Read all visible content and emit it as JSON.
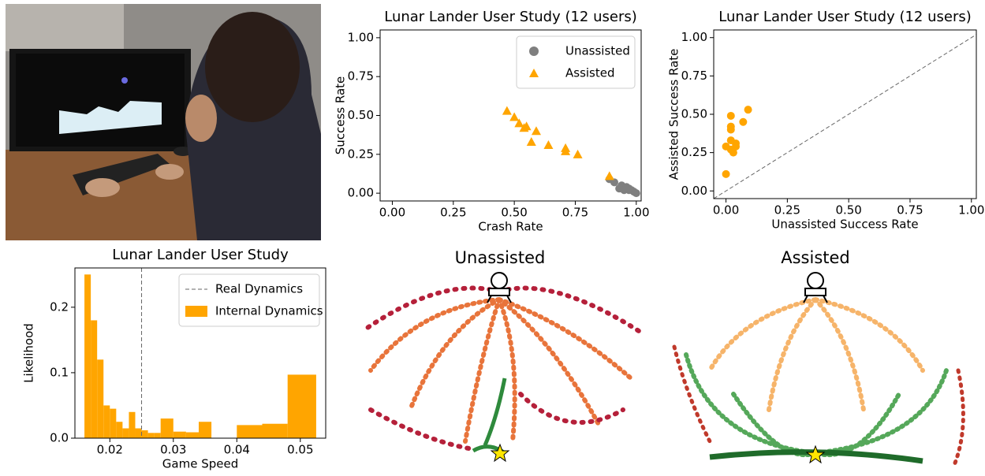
{
  "chart_data": [
    {
      "type": "scatter",
      "title": "Lunar Lander User Study (12 users)",
      "x_label": "Crash Rate",
      "y_label": "Success Rate",
      "xlim": [
        -0.05,
        1.02
      ],
      "ylim": [
        -0.05,
        1.05
      ],
      "xticks": [
        {
          "value": 0,
          "label": "0.00"
        },
        {
          "value": 0.25,
          "label": "0.25"
        },
        {
          "value": 0.5,
          "label": "0.50"
        },
        {
          "value": 0.75,
          "label": "0.75"
        },
        {
          "value": 1,
          "label": "1.00"
        }
      ],
      "yticks": [
        {
          "value": 0,
          "label": "0.00"
        },
        {
          "value": 0.25,
          "label": "0.25"
        },
        {
          "value": 0.5,
          "label": "0.50"
        },
        {
          "value": 0.75,
          "label": "0.75"
        },
        {
          "value": 1,
          "label": "1.00"
        }
      ],
      "legend": "upper right",
      "series": [
        {
          "name": "Unassisted",
          "color": "#7f7f7f",
          "marker": "circle",
          "x": [
            0.89,
            0.91,
            0.93,
            0.94,
            0.95,
            0.96,
            0.97,
            0.98,
            0.99,
            1.0,
            0.95,
            0.97
          ],
          "values": [
            0.09,
            0.07,
            0.03,
            0.05,
            0.03,
            0.04,
            0.02,
            0.02,
            0.01,
            0.0,
            0.02,
            0.03
          ]
        },
        {
          "name": "Assisted",
          "color": "#ffa500",
          "marker": "triangle",
          "x": [
            0.47,
            0.5,
            0.52,
            0.54,
            0.57,
            0.59,
            0.64,
            0.71,
            0.71,
            0.76,
            0.89,
            0.55
          ],
          "values": [
            0.53,
            0.49,
            0.45,
            0.42,
            0.33,
            0.4,
            0.31,
            0.29,
            0.27,
            0.25,
            0.11,
            0.43
          ]
        }
      ]
    },
    {
      "type": "scatter",
      "title": "Lunar Lander User Study (12 users)",
      "x_label": "Unassisted Success Rate",
      "y_label": "Assisted Success Rate",
      "xlim": [
        -0.05,
        1.02
      ],
      "ylim": [
        -0.05,
        1.05
      ],
      "diagonal": true,
      "xticks": [
        {
          "value": 0,
          "label": "0.00"
        },
        {
          "value": 0.25,
          "label": "0.25"
        },
        {
          "value": 0.5,
          "label": "0.50"
        },
        {
          "value": 0.75,
          "label": "0.75"
        },
        {
          "value": 1,
          "label": "1.00"
        }
      ],
      "yticks": [
        {
          "value": 0,
          "label": "0.00"
        },
        {
          "value": 0.25,
          "label": "0.25"
        },
        {
          "value": 0.5,
          "label": "0.50"
        },
        {
          "value": 0.75,
          "label": "0.75"
        },
        {
          "value": 1,
          "label": "1.00"
        }
      ],
      "series": [
        {
          "color": "#ffa500",
          "marker": "circle",
          "x": [
            0.0,
            0.0,
            0.02,
            0.02,
            0.02,
            0.02,
            0.02,
            0.03,
            0.04,
            0.04,
            0.07,
            0.09
          ],
          "values": [
            0.11,
            0.29,
            0.49,
            0.42,
            0.4,
            0.33,
            0.27,
            0.25,
            0.31,
            0.29,
            0.45,
            0.53
          ]
        }
      ]
    },
    {
      "type": "histogram",
      "title": "Lunar Lander User Study",
      "x_label": "Game Speed",
      "y_label": "Likelihood",
      "xlim": [
        0.0145,
        0.054
      ],
      "ylim": [
        0,
        0.26
      ],
      "xticks": [
        0.02,
        0.03,
        0.04,
        0.05
      ],
      "yticks": [
        {
          "value": 0,
          "label": "0.0"
        },
        0.1,
        0.2
      ],
      "legend": "upper right",
      "reference_line": {
        "name": "Real Dynamics",
        "value": 0.025,
        "color": "#666666"
      },
      "bins": [
        0.016,
        0.017,
        0.018,
        0.019,
        0.02,
        0.021,
        0.022,
        0.023,
        0.024,
        0.025,
        0.026,
        0.027,
        0.028,
        0.03,
        0.032,
        0.034,
        0.036,
        0.04,
        0.044,
        0.048,
        0.0525
      ],
      "series": [
        {
          "name": "Internal Dynamics",
          "color": "#ffa500",
          "values": [
            0.25,
            0.18,
            0.12,
            0.05,
            0.045,
            0.025,
            0.015,
            0.04,
            0.015,
            0.012,
            0.008,
            0.008,
            0.03,
            0.01,
            0.009,
            0.025,
            0,
            0.02,
            0.022,
            0.097
          ]
        }
      ]
    }
  ],
  "trajectory_panels": [
    {
      "title": "Unassisted"
    },
    {
      "title": "Assisted"
    }
  ]
}
